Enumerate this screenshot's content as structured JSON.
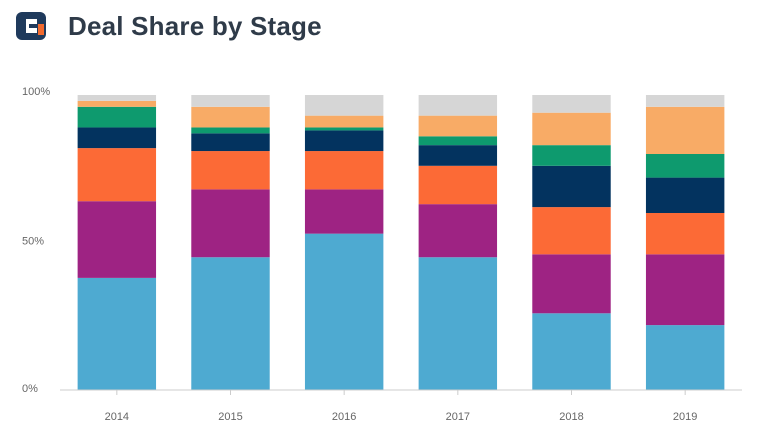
{
  "header": {
    "title": "Deal Share by Stage",
    "logo_icon": "company-logo-icon"
  },
  "colors": {
    "title": "#2f3b49",
    "axis": "#cccccc",
    "tick_text": "#666666",
    "logo_primary": "#1f3a5c",
    "logo_accent": "#f26a2e"
  },
  "chart_data": {
    "type": "bar",
    "stacked": true,
    "title": "Deal Share by Stage",
    "xlabel": "",
    "ylabel": "",
    "ylim": [
      0,
      100
    ],
    "y_ticks": [
      {
        "value": 0,
        "label": "0%"
      },
      {
        "value": 50,
        "label": "50%"
      },
      {
        "value": 100,
        "label": "100%"
      }
    ],
    "grid": false,
    "legend": "none",
    "categories": [
      "2014",
      "2015",
      "2016",
      "2017",
      "2018",
      "2019"
    ],
    "series": [
      {
        "color": "#4eaad1",
        "values": [
          38,
          45,
          53,
          45,
          26,
          22
        ]
      },
      {
        "color": "#9e2383",
        "values": [
          26,
          23,
          15,
          18,
          20,
          24
        ]
      },
      {
        "color": "#fc6a36",
        "values": [
          18,
          13,
          13,
          13,
          16,
          14
        ]
      },
      {
        "color": "#03335f",
        "values": [
          7,
          6,
          7,
          7,
          14,
          12
        ]
      },
      {
        "color": "#0e9a6e",
        "values": [
          7,
          2,
          1,
          3,
          7,
          8
        ]
      },
      {
        "color": "#f8ab66",
        "values": [
          2,
          7,
          4,
          7,
          11,
          16
        ]
      },
      {
        "color": "#d6d6d6",
        "values": [
          2,
          4,
          7,
          7,
          6,
          4
        ]
      }
    ]
  }
}
